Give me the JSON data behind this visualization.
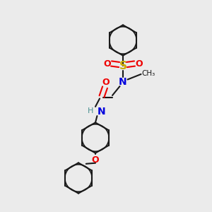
{
  "background_color": "#ebebeb",
  "bond_color": "#1a1a1a",
  "colors": {
    "N": "#0000dd",
    "O": "#ee0000",
    "S": "#ccaa00",
    "H_label": "#4a9090",
    "C": "#1a1a1a"
  },
  "lw": 1.5,
  "lw_aromatic": 1.5,
  "font_size": 9
}
